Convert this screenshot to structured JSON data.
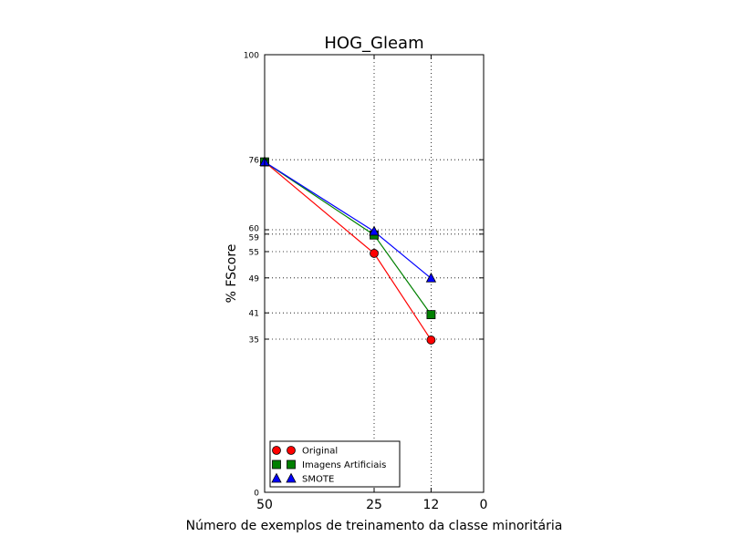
{
  "chart_data": {
    "type": "line",
    "title": "HOG_Gleam",
    "xlabel": "Número de exemplos de treinamento da classe minoritária",
    "ylabel": "% FScore",
    "xlim": [
      50,
      0
    ],
    "ylim": [
      0,
      100
    ],
    "x_ticks": [
      "50",
      "25",
      "12",
      "0"
    ],
    "y_ticks": [
      "0",
      "35",
      "41",
      "49",
      "55",
      "59",
      "60",
      "76",
      "100"
    ],
    "grid": "dotted, at data points",
    "legend": "lower-left",
    "series": [
      {
        "name": "Original",
        "marker": "circle",
        "color": "#ff0000",
        "x": [
          50,
          25,
          12
        ],
        "y": [
          75.5,
          54.6,
          34.8
        ]
      },
      {
        "name": "Imagens Artificiais",
        "marker": "square",
        "color": "#008000",
        "x": [
          50,
          25,
          12
        ],
        "y": [
          75.5,
          58.8,
          40.6
        ]
      },
      {
        "name": "SMOTE",
        "marker": "triangle",
        "color": "#0000ff",
        "x": [
          50,
          25,
          12
        ],
        "y": [
          75.5,
          59.6,
          48.9
        ]
      }
    ]
  }
}
